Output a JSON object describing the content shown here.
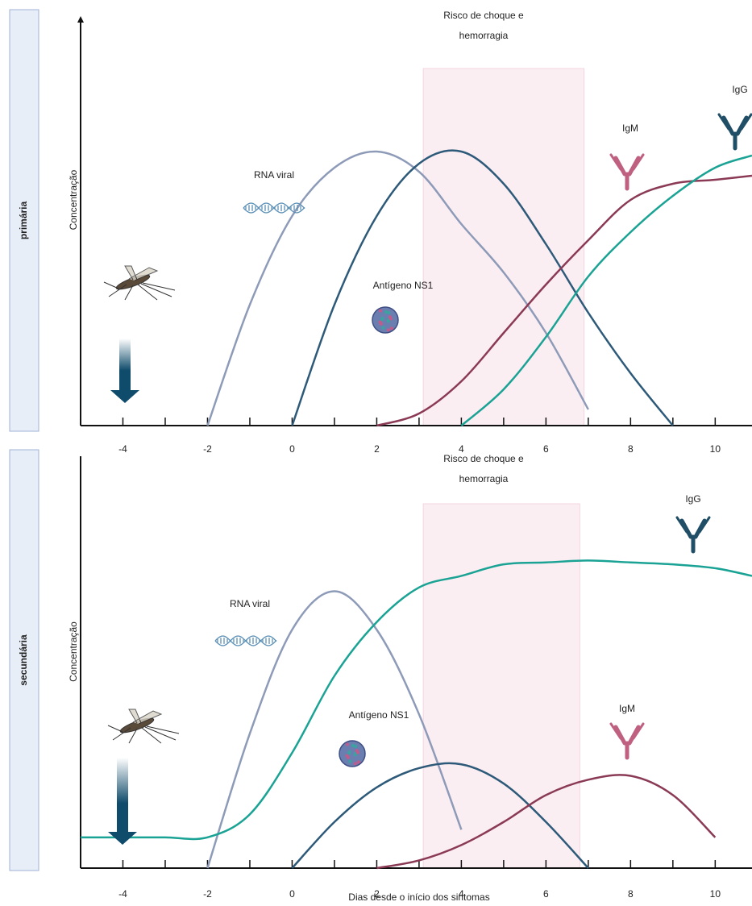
{
  "chart_data": [
    {
      "type": "line",
      "panel_label": "primária",
      "ylabel": "Concentração",
      "band_label": [
        "Risco de choque e",
        "hemorragia"
      ],
      "highlight_band": [
        3.1,
        6.9
      ],
      "x": [
        -5,
        -4,
        -3,
        -2,
        -1,
        0,
        1,
        2,
        3,
        4,
        5,
        6,
        7,
        8,
        9,
        10,
        10.87
      ],
      "xlim": [
        -5,
        10.87
      ],
      "xticks": [
        -4,
        -2,
        0,
        2,
        4,
        6,
        8,
        10
      ],
      "ylim": [
        0,
        100
      ],
      "series": [
        {
          "name": "RNA viral",
          "color": "#8e9bb8",
          "values": [
            null,
            null,
            null,
            0,
            30,
            52,
            64,
            68,
            63,
            50,
            38,
            23,
            4,
            null,
            null,
            null,
            null
          ]
        },
        {
          "name": "Antígeno NS1",
          "color": "#2e5a7a",
          "values": [
            null,
            null,
            null,
            null,
            null,
            0,
            30,
            52,
            65,
            68,
            60,
            45,
            28,
            13,
            0,
            null,
            null
          ]
        },
        {
          "name": "IgM",
          "color": "#8b3a55",
          "values": [
            null,
            null,
            null,
            null,
            null,
            null,
            null,
            0,
            3,
            11,
            23,
            35,
            46,
            56,
            60,
            61,
            62
          ]
        },
        {
          "name": "IgG",
          "color": "#1aa394",
          "values": [
            null,
            null,
            null,
            null,
            null,
            null,
            null,
            null,
            null,
            0,
            9,
            22,
            37,
            48,
            57,
            64,
            67
          ]
        }
      ]
    },
    {
      "type": "line",
      "panel_label": "secundária",
      "ylabel": "Concentração",
      "band_label": [
        "Risco de choque e",
        "hemorragia"
      ],
      "highlight_band": [
        3.1,
        6.8
      ],
      "xlabel": "Dias desde o início dos sintomas",
      "x": [
        -5,
        -4,
        -3,
        -2,
        -1,
        0,
        1,
        2,
        3,
        4,
        5,
        6,
        7,
        8,
        9,
        10,
        10.87
      ],
      "xlim": [
        -5,
        10.87
      ],
      "xticks": [
        -4,
        -2,
        0,
        2,
        4,
        6,
        8,
        10
      ],
      "ylim": [
        0,
        100
      ],
      "series": [
        {
          "name": "RNA viral",
          "color": "#8e9bb8",
          "values": [
            null,
            null,
            null,
            0,
            35,
            62,
            72,
            62,
            40,
            10,
            null,
            null,
            null,
            null,
            null,
            null,
            null
          ]
        },
        {
          "name": "Antígeno NS1",
          "color": "#2e5a7a",
          "values": [
            null,
            null,
            null,
            null,
            null,
            0,
            12,
            21,
            26,
            27,
            22,
            12,
            0,
            null,
            null,
            null,
            null
          ]
        },
        {
          "name": "IgM",
          "color": "#8b3a55",
          "values": [
            null,
            null,
            null,
            null,
            null,
            null,
            null,
            0,
            2,
            6,
            12,
            19,
            23,
            24,
            19,
            8,
            null
          ]
        },
        {
          "name": "IgG",
          "color": "#1aa394",
          "values": [
            8,
            8,
            8,
            8,
            14,
            30,
            50,
            64,
            73,
            76,
            79,
            79.5,
            80,
            79.5,
            79,
            78,
            76
          ]
        }
      ]
    }
  ]
}
